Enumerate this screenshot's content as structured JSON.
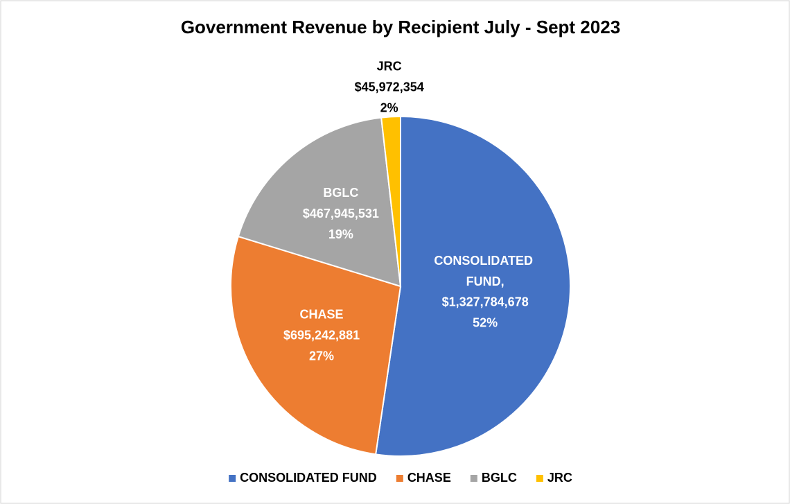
{
  "chart_data": {
    "type": "pie",
    "title": "Government Revenue by Recipient July - Sept 2023",
    "categories": [
      "CONSOLIDATED FUND",
      "CHASE",
      "BGLC",
      "JRC"
    ],
    "label_names": [
      "CONSOLIDATED FUND,",
      "CHASE",
      "BGLC",
      "JRC"
    ],
    "values": [
      1327784678,
      695242881,
      467945531,
      45972354
    ],
    "value_labels": [
      "$1,327,784,678",
      "$695,242,881",
      "$467,945,531",
      "$45,972,354"
    ],
    "percent_labels": [
      "52%",
      "27%",
      "19%",
      "2%"
    ],
    "colors": [
      "#4472c4",
      "#ed7d31",
      "#a5a5a5",
      "#ffc000"
    ],
    "label_colors": [
      "#ffffff",
      "#ffffff",
      "#ffffff",
      "#000000"
    ],
    "legend": "bottom"
  }
}
